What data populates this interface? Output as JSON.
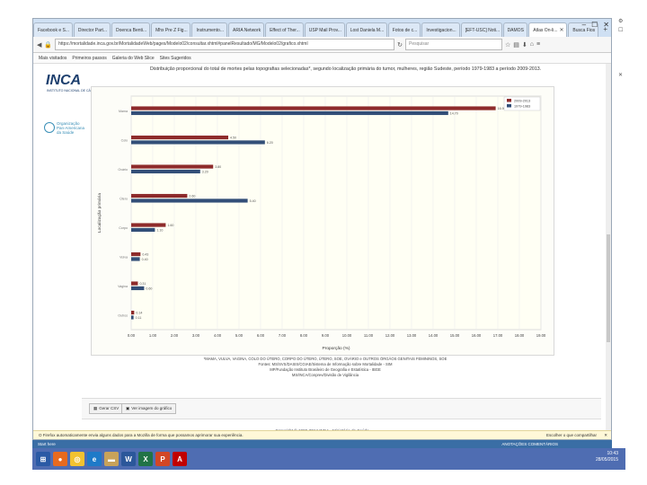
{
  "window": {
    "tabs": [
      {
        "label": "Facebook e S...",
        "active": false
      },
      {
        "label": "Director Part...",
        "active": false
      },
      {
        "label": "Doenca Benti...",
        "active": false
      },
      {
        "label": "Mhx Pre Z Fig...",
        "active": false
      },
      {
        "label": "Instrumento...",
        "active": false
      },
      {
        "label": "ARIA Network",
        "active": false
      },
      {
        "label": "Effect of Ther...",
        "active": false
      },
      {
        "label": "USP Mail Prov...",
        "active": false
      },
      {
        "label": "Lost Daniela M...",
        "active": false
      },
      {
        "label": "Fotos de c...",
        "active": false
      },
      {
        "label": "Investigacion...",
        "active": false
      },
      {
        "label": "[EFT-USC] Noti...",
        "active": false
      },
      {
        "label": "DAMOS",
        "active": false
      },
      {
        "label": "Atlas On-li...",
        "active": true
      },
      {
        "label": "Busca Fios",
        "active": false
      }
    ],
    "new_tab": "+",
    "controls": [
      "–",
      "☐",
      "✕"
    ]
  },
  "addressbar": {
    "url": "https://mortalidade.inca.gov.br/MortalidadeWeb/pages/Modelo02/consultar.xhtml#panelResultado/MG/Modelo02/grafico.xhtml",
    "search_placeholder": "Pesquisar"
  },
  "bookmarks": [
    "Mais visitados",
    "Primeiros passos",
    "Galeria do Web Slice",
    "Sites Sugeridos"
  ],
  "page": {
    "logo_inca": "INCA",
    "logo_inca_sub": "INSTITUTO NACIONAL DE CÂNCER",
    "logo_opas": [
      "Organização",
      "Pan-Americana",
      "da Saúde"
    ],
    "chart_title": "Distribuição proporcional do total de mortes pelas topografias selecionadas*, segundo localização primária do tumor, mulheres, região Sudeste, período 1979-1983 a período 2009-2013.",
    "notes": [
      "*MAMA, VULVA, VAGINA, COLO DO ÚTERO, CORPO DO ÚTERO, ÚTERO, SOE, OVÁRIO e OUTROS ÓRGÃOS GENITAIS FEMININOS, SOE",
      "",
      "Fontes: MS/SVS/DASIS/CGIAE/Sistema de Informação sobre Mortalidade - SIM",
      "MP/Fundação Instituto Brasileiro de Geografia e Estatística - IBGE",
      "MS/INCA/Conprev/Divisão de Vigilância"
    ],
    "buttons": [
      {
        "label": "Gerar CSV"
      },
      {
        "label": "Ver imagem do gráfico"
      }
    ],
    "copyright": "Copyright © 1996-2014 INCA - Ministério da Saúde"
  },
  "notification": {
    "text": "O Firefox automaticamente envia alguns dados para a Mozilla de forma que possamos aprimorar sua experiência.",
    "right": "Escolher o que compartilhar",
    "close": "✕"
  },
  "statusbar": {
    "left": "Start here",
    "right": "ANOTAÇÕES   COMENTÁRIOS"
  },
  "tray": {
    "time": "10:43",
    "date": "28/05/2015"
  },
  "outside_right": [
    "⚙",
    "☐",
    "✕"
  ],
  "chart_data": {
    "type": "bar",
    "orientation": "horizontal",
    "title": "",
    "xlabel": "Proporção (%)",
    "ylabel": "Localização primária",
    "xlim": [
      0,
      19
    ],
    "xticks": [
      "0.00",
      "1.00",
      "2.00",
      "3.00",
      "4.00",
      "5.00",
      "6.00",
      "7.00",
      "8.00",
      "9.00",
      "10.00",
      "11.00",
      "12.00",
      "13.00",
      "14.00",
      "15.00",
      "16.00",
      "17.00",
      "18.00",
      "19.00"
    ],
    "categories": [
      "Mama",
      "Colo",
      "Ovário",
      "Útero",
      "Corpo",
      "Vulva",
      "Vagina",
      "Outros"
    ],
    "series": [
      {
        "name": "2009-2013",
        "color": "#8e2b2b",
        "values": [
          16.9,
          4.5,
          3.8,
          2.6,
          1.6,
          0.43,
          0.31,
          0.14
        ]
      },
      {
        "name": "1979-1983",
        "color": "#334f78",
        "values": [
          14.7,
          6.2,
          3.2,
          5.4,
          1.1,
          0.4,
          0.6,
          0.11
        ]
      }
    ],
    "data_labels": [
      [
        "16.90",
        "14.70"
      ],
      [
        "4.50",
        "6.20"
      ],
      [
        "3.80",
        "3.20"
      ],
      [
        "2.60",
        "5.40"
      ],
      [
        "1.60",
        "1.10"
      ],
      [
        "0.43",
        "0.40"
      ],
      [
        "0.31",
        "0.60"
      ],
      [
        "0.14",
        "0.11"
      ]
    ],
    "legend_position": "top-right",
    "grid": true
  }
}
